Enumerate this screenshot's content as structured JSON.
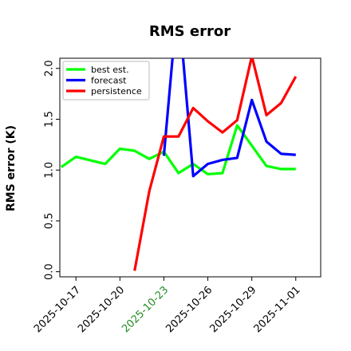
{
  "chart_data": {
    "type": "line",
    "title": "RMS error",
    "xlabel": "",
    "ylabel": "RMS error (K)",
    "ylim": [
      -0.05,
      2.1
    ],
    "yticks": [
      "0.0",
      "0.5",
      "1.0",
      "1.5",
      "2.0"
    ],
    "ytick_values": [
      0.0,
      0.5,
      1.0,
      1.5,
      2.0
    ],
    "xticks": [
      "2025-10-17",
      "2025-10-20",
      "2025-10-23",
      "2025-10-26",
      "2025-10-29",
      "2025-11-01"
    ],
    "xtick_values": [
      0,
      3,
      6,
      9,
      12,
      15
    ],
    "xtick_colors": [
      "#000000",
      "#000000",
      "#228b22",
      "#000000",
      "#000000",
      "#000000"
    ],
    "xlim": [
      -1.1,
      16.7
    ],
    "legend": {
      "placement": "top-left",
      "entries": [
        "best est.",
        "forecast",
        "persistence"
      ]
    },
    "grid": false,
    "series": [
      {
        "name": "best est.",
        "color": "#00ff00",
        "x": [
          -1,
          0,
          2,
          3,
          4,
          5,
          6,
          7,
          8,
          9,
          10,
          11,
          12,
          13,
          14,
          15
        ],
        "values": [
          1.03,
          1.13,
          1.06,
          1.21,
          1.19,
          1.11,
          1.18,
          0.97,
          1.06,
          0.96,
          0.97,
          1.44,
          1.24,
          1.04,
          1.01,
          1.01
        ]
      },
      {
        "name": "forecast",
        "color": "#0000ff",
        "x": [
          6,
          6.6,
          7.3,
          8,
          9,
          10,
          11,
          12,
          13,
          14,
          15
        ],
        "values": [
          1.14,
          2.12,
          2.12,
          0.94,
          1.06,
          1.1,
          1.12,
          1.69,
          1.28,
          1.16,
          1.15
        ],
        "x_offset": 0
      },
      {
        "name": "persistence",
        "color": "#ff0000",
        "x": [
          4,
          5,
          6,
          7,
          8,
          9,
          10,
          11,
          12,
          13,
          14,
          15
        ],
        "values": [
          0.01,
          0.79,
          1.33,
          1.33,
          1.61,
          1.48,
          1.37,
          1.49,
          2.12,
          1.54,
          1.66,
          1.92
        ]
      }
    ]
  }
}
